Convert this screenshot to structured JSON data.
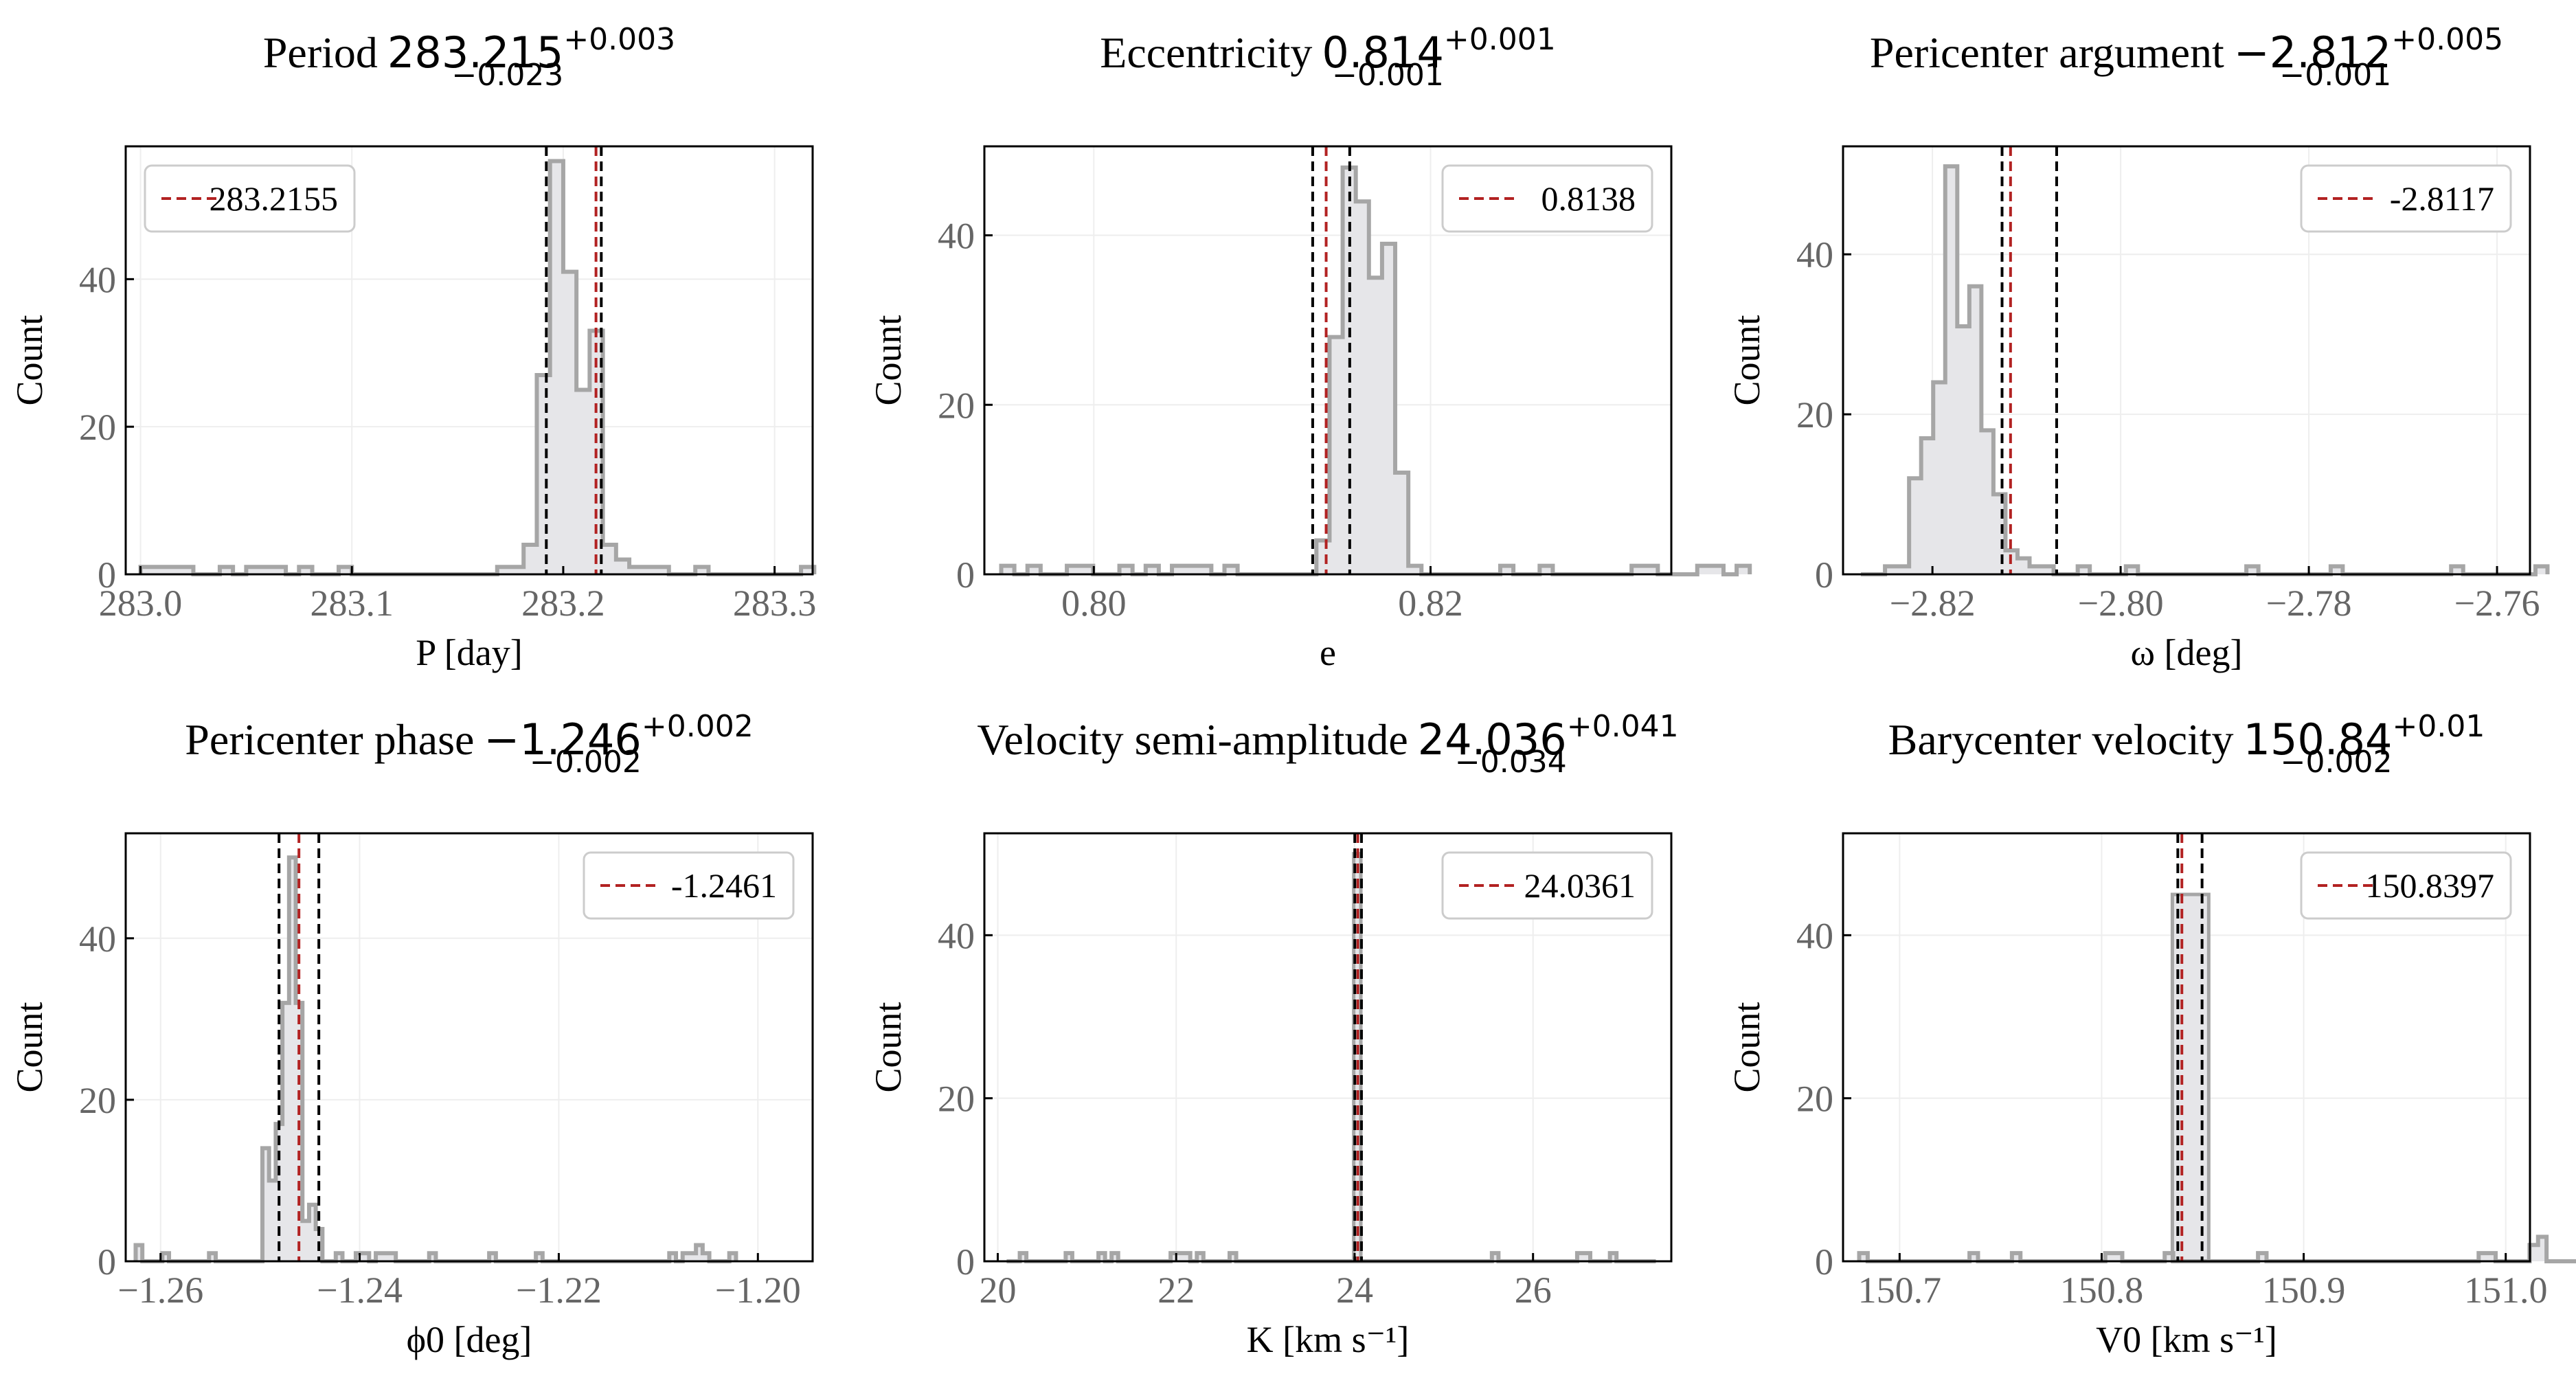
{
  "chart_data": [
    {
      "type": "histogram",
      "title": {
        "text": "Period",
        "value": "283.215",
        "plus": "+0.003",
        "minus": "−0.023"
      },
      "xlabel": "P [day]",
      "ylabel": "Count",
      "xlim": [
        282.993,
        283.318
      ],
      "ylim": [
        0,
        58
      ],
      "xticks": [
        {
          "v": 283.0,
          "label": "283.0"
        },
        {
          "v": 283.1,
          "label": "283.1"
        },
        {
          "v": 283.2,
          "label": "283.2"
        },
        {
          "v": 283.3,
          "label": "283.3"
        }
      ],
      "yticks": [
        {
          "v": 0,
          "label": "0"
        },
        {
          "v": 20,
          "label": "20"
        },
        {
          "v": 40,
          "label": "40"
        }
      ],
      "bins": {
        "start": 283.0,
        "width": 0.00625,
        "counts": [
          1,
          1,
          1,
          1,
          0,
          0,
          1,
          0,
          1,
          1,
          1,
          0,
          1,
          0,
          0,
          1,
          0,
          0,
          0,
          0,
          0,
          0,
          0,
          0,
          0,
          0,
          0,
          1,
          1,
          4,
          27,
          56,
          41,
          25,
          33,
          4,
          2,
          1,
          1,
          1,
          0,
          0,
          1,
          0,
          0,
          0,
          0,
          0,
          0,
          0,
          1
        ]
      },
      "median": 283.2155,
      "bounds": [
        283.192,
        283.218
      ],
      "legend": {
        "label": "283.2155",
        "position": "top-left"
      }
    },
    {
      "type": "histogram",
      "title": {
        "text": "Eccentricity",
        "value": "0.814",
        "plus": "+0.001",
        "minus": "−0.001"
      },
      "xlabel": "e",
      "ylabel": "Count",
      "xlim": [
        0.7935,
        0.8343
      ],
      "ylim": [
        0,
        50.5
      ],
      "xticks": [
        {
          "v": 0.8,
          "label": "0.80"
        },
        {
          "v": 0.82,
          "label": "0.82"
        }
      ],
      "yticks": [
        {
          "v": 0,
          "label": "0"
        },
        {
          "v": 20,
          "label": "20"
        },
        {
          "v": 40,
          "label": "40"
        }
      ],
      "bins": {
        "start": 0.7945,
        "width": 0.00078,
        "counts": [
          1,
          0,
          1,
          0,
          0,
          1,
          1,
          0,
          0,
          1,
          0,
          1,
          0,
          1,
          1,
          1,
          0,
          1,
          0,
          0,
          0,
          0,
          0,
          0,
          4,
          28,
          48,
          44,
          35,
          39,
          12,
          1,
          0,
          0,
          0,
          0,
          0,
          0,
          1,
          0,
          0,
          1,
          0,
          0,
          0,
          0,
          0,
          0,
          1,
          1,
          0,
          0,
          0,
          1,
          1,
          0,
          1
        ]
      },
      "median": 0.8138,
      "bounds": [
        0.813,
        0.8152
      ],
      "legend": {
        "label": "0.8138",
        "position": "top-right"
      }
    },
    {
      "type": "histogram",
      "title": {
        "text": "Pericenter argument",
        "value": "−2.812",
        "plus": "+0.005",
        "minus": "−0.001"
      },
      "xlabel": "ω [deg]",
      "ylabel": "Count",
      "xlim": [
        -2.8295,
        -2.7565
      ],
      "ylim": [
        0,
        53.5
      ],
      "xticks": [
        {
          "v": -2.82,
          "label": "−2.82"
        },
        {
          "v": -2.8,
          "label": "−2.80"
        },
        {
          "v": -2.78,
          "label": "−2.78"
        },
        {
          "v": -2.76,
          "label": "−2.76"
        }
      ],
      "yticks": [
        {
          "v": 0,
          "label": "0"
        },
        {
          "v": 20,
          "label": "20"
        },
        {
          "v": 40,
          "label": "40"
        }
      ],
      "bins": {
        "start": -2.8276,
        "width": 0.00128,
        "counts": [
          0,
          0,
          1,
          1,
          12,
          17,
          24,
          51,
          31,
          36,
          18,
          10,
          3,
          2,
          1,
          1,
          0,
          0,
          1,
          0,
          0,
          0,
          1,
          0,
          0,
          0,
          0,
          0,
          0,
          0,
          0,
          0,
          1,
          0,
          0,
          0,
          0,
          0,
          0,
          1,
          0,
          0,
          0,
          0,
          0,
          0,
          0,
          0,
          0,
          1,
          0,
          0,
          0,
          0,
          0,
          0,
          1
        ]
      },
      "median": -2.8117,
      "bounds": [
        -2.8126,
        -2.8068
      ],
      "legend": {
        "label": "-2.8117",
        "position": "top-right"
      }
    },
    {
      "type": "histogram",
      "title": {
        "text": "Pericenter phase",
        "value": "−1.246",
        "plus": "+0.002",
        "minus": "−0.002"
      },
      "xlabel": "ϕ0 [deg]",
      "ylabel": "Count",
      "xlim": [
        -1.2635,
        -1.1945
      ],
      "ylim": [
        0,
        53
      ],
      "xticks": [
        {
          "v": -1.26,
          "label": "−1.26"
        },
        {
          "v": -1.24,
          "label": "−1.24"
        },
        {
          "v": -1.22,
          "label": "−1.22"
        },
        {
          "v": -1.2,
          "label": "−1.20"
        }
      ],
      "yticks": [
        {
          "v": 0,
          "label": "0"
        },
        {
          "v": 20,
          "label": "20"
        },
        {
          "v": 40,
          "label": "40"
        }
      ],
      "bins": {
        "start": -1.2625,
        "width": 0.00067,
        "counts": [
          2,
          0,
          0,
          0,
          1,
          0,
          0,
          0,
          0,
          0,
          0,
          1,
          0,
          0,
          0,
          0,
          0,
          0,
          0,
          14,
          10,
          17,
          32,
          50,
          32,
          5,
          7,
          4,
          0,
          0,
          1,
          0,
          0,
          1,
          1,
          0,
          1,
          1,
          1,
          0,
          0,
          0,
          0,
          0,
          1,
          0,
          0,
          0,
          0,
          0,
          0,
          0,
          0,
          1,
          0,
          0,
          0,
          0,
          0,
          0,
          1,
          0,
          0,
          0,
          0,
          0,
          0,
          0,
          0,
          0,
          0,
          0,
          0,
          0,
          0,
          0,
          0,
          0,
          0,
          0,
          1,
          0,
          1,
          1,
          2,
          1,
          0,
          0,
          0,
          1
        ]
      },
      "median": -1.2461,
      "bounds": [
        -1.2481,
        -1.2441
      ],
      "legend": {
        "label": "-1.2461",
        "position": "top-right"
      }
    },
    {
      "type": "histogram",
      "title": {
        "text": "Velocity semi-amplitude",
        "value": "24.036",
        "plus": "+0.041",
        "minus": "−0.034"
      },
      "xlabel": "K [km s⁻¹]",
      "ylabel": "Count",
      "xlim": [
        19.85,
        27.55
      ],
      "ylim": [
        0,
        52.5
      ],
      "xticks": [
        {
          "v": 20,
          "label": "20"
        },
        {
          "v": 22,
          "label": "22"
        },
        {
          "v": 24,
          "label": "24"
        },
        {
          "v": 26,
          "label": "26"
        }
      ],
      "yticks": [
        {
          "v": 0,
          "label": "0"
        },
        {
          "v": 20,
          "label": "20"
        },
        {
          "v": 40,
          "label": "40"
        }
      ],
      "bins": {
        "start": 20.1,
        "width": 0.0735,
        "counts": [
          0,
          0,
          1,
          0,
          0,
          0,
          0,
          0,
          0,
          1,
          0,
          0,
          0,
          0,
          1,
          0,
          1,
          0,
          0,
          0,
          0,
          0,
          0,
          0,
          0,
          1,
          1,
          1,
          0,
          1,
          0,
          0,
          0,
          0,
          1,
          0,
          0,
          0,
          0,
          0,
          0,
          0,
          0,
          0,
          0,
          0,
          0,
          0,
          0,
          0,
          0,
          0,
          0,
          0,
          0,
          0,
          0,
          0,
          0,
          0,
          0,
          0,
          0,
          0,
          0,
          0,
          0,
          0,
          0,
          0,
          0,
          0,
          0,
          0,
          1,
          0,
          0,
          0,
          0,
          0,
          0,
          0,
          0,
          0,
          0,
          0,
          0,
          1,
          1,
          0,
          0,
          0,
          1,
          0,
          0,
          0,
          0,
          0,
          0
        ]
      },
      "spike": {
        "x": [
          23.99,
          24.07
        ],
        "count": 50
      },
      "median": 24.0361,
      "bounds": [
        24.002,
        24.077
      ],
      "legend": {
        "label": "24.0361",
        "position": "top-right"
      }
    },
    {
      "type": "histogram",
      "title": {
        "text": "Barycenter velocity",
        "value": "150.84",
        "plus": "+0.01",
        "minus": "−0.002"
      },
      "xlabel": "V0 [km s⁻¹]",
      "ylabel": "Count",
      "xlim": [
        150.672,
        151.012
      ],
      "ylim": [
        0,
        52.5
      ],
      "xticks": [
        {
          "v": 150.7,
          "label": "150.7"
        },
        {
          "v": 150.8,
          "label": "150.8"
        },
        {
          "v": 150.9,
          "label": "150.9"
        },
        {
          "v": 151.0,
          "label": "151.0"
        }
      ],
      "yticks": [
        {
          "v": 0,
          "label": "0"
        },
        {
          "v": 20,
          "label": "20"
        },
        {
          "v": 40,
          "label": "40"
        }
      ],
      "bins": {
        "start": 150.68,
        "width": 0.0042,
        "counts": [
          1,
          0,
          0,
          0,
          0,
          0,
          0,
          0,
          0,
          0,
          0,
          0,
          0,
          1,
          0,
          0,
          0,
          0,
          1,
          0,
          0,
          0,
          0,
          0,
          0,
          0,
          0,
          0,
          0,
          1,
          1,
          0,
          0,
          0,
          0,
          0,
          1,
          0,
          0,
          0,
          0,
          0,
          0,
          0,
          0,
          0,
          0,
          1,
          0,
          0,
          0,
          0,
          0,
          0,
          0,
          0,
          0,
          0,
          0,
          0,
          0,
          0,
          0,
          0,
          0,
          0,
          0,
          0,
          0,
          0,
          0,
          0,
          0,
          1,
          1,
          0,
          0,
          0,
          0,
          2,
          3,
          0,
          0,
          0,
          0,
          1,
          0,
          0,
          0,
          0,
          1,
          0,
          0,
          0,
          0,
          0,
          0
        ]
      },
      "spike": {
        "x": [
          150.835,
          150.853
        ],
        "count": 45
      },
      "median": 150.8397,
      "bounds": [
        150.8377,
        150.8497
      ],
      "legend": {
        "label": "150.8397",
        "position": "top-right"
      }
    }
  ],
  "colors": {
    "median_line": "#b22222",
    "bound_line": "#000000",
    "hist_edge": "#a6a6a6",
    "hist_fill": "#e6e6e9",
    "grid": "#eeeeee",
    "tick_label": "#666666"
  }
}
